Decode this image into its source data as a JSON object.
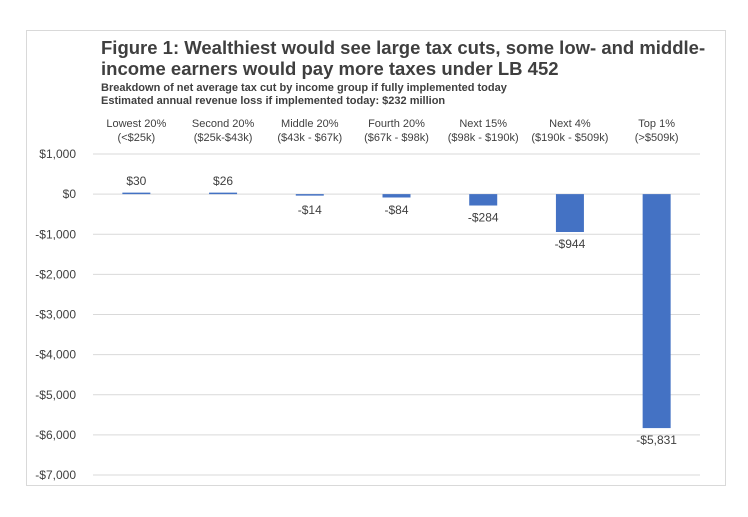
{
  "chart_data": {
    "type": "bar",
    "title": "Figure 1: Wealthiest would see large tax cuts, some low- and middle-income earners would pay more taxes under LB 452",
    "subtitle": "Breakdown of net average tax cut by income group if fully implemented today",
    "subtitle2": "Estimated annual revenue loss if implemented today: $232 million",
    "categories": [
      {
        "name": "Lowest 20%",
        "range": "(<$25k)"
      },
      {
        "name": "Second 20%",
        "range": "($25k-$43k)"
      },
      {
        "name": "Middle 20%",
        "range": "($43k - $67k)"
      },
      {
        "name": "Fourth 20%",
        "range": "($67k - $98k)"
      },
      {
        "name": "Next 15%",
        "range": "($98k - $190k)"
      },
      {
        "name": "Next 4%",
        "range": "($190k - $509k)"
      },
      {
        "name": "Top 1%",
        "range": "(>$509k)"
      }
    ],
    "values": [
      30,
      26,
      -14,
      -84,
      -284,
      -944,
      -5831
    ],
    "data_labels": [
      "$30",
      "$26",
      "-$14",
      "-$84",
      "-$284",
      "-$944",
      "-$5,831"
    ],
    "ylim": [
      -7000,
      1000
    ],
    "yticks": [
      1000,
      0,
      -1000,
      -2000,
      -3000,
      -4000,
      -5000,
      -6000,
      -7000
    ],
    "ytick_labels": [
      "$1,000",
      "$0",
      "-$1,000",
      "-$2,000",
      "-$3,000",
      "-$4,000",
      "-$5,000",
      "-$6,000",
      "-$7,000"
    ],
    "xlabel": "",
    "ylabel": "",
    "grid": true,
    "legend": "none",
    "colors": {
      "bar": "#4472c4",
      "grid": "#d9d9d9",
      "text": "#404040",
      "title": "#3f3f3f"
    }
  }
}
